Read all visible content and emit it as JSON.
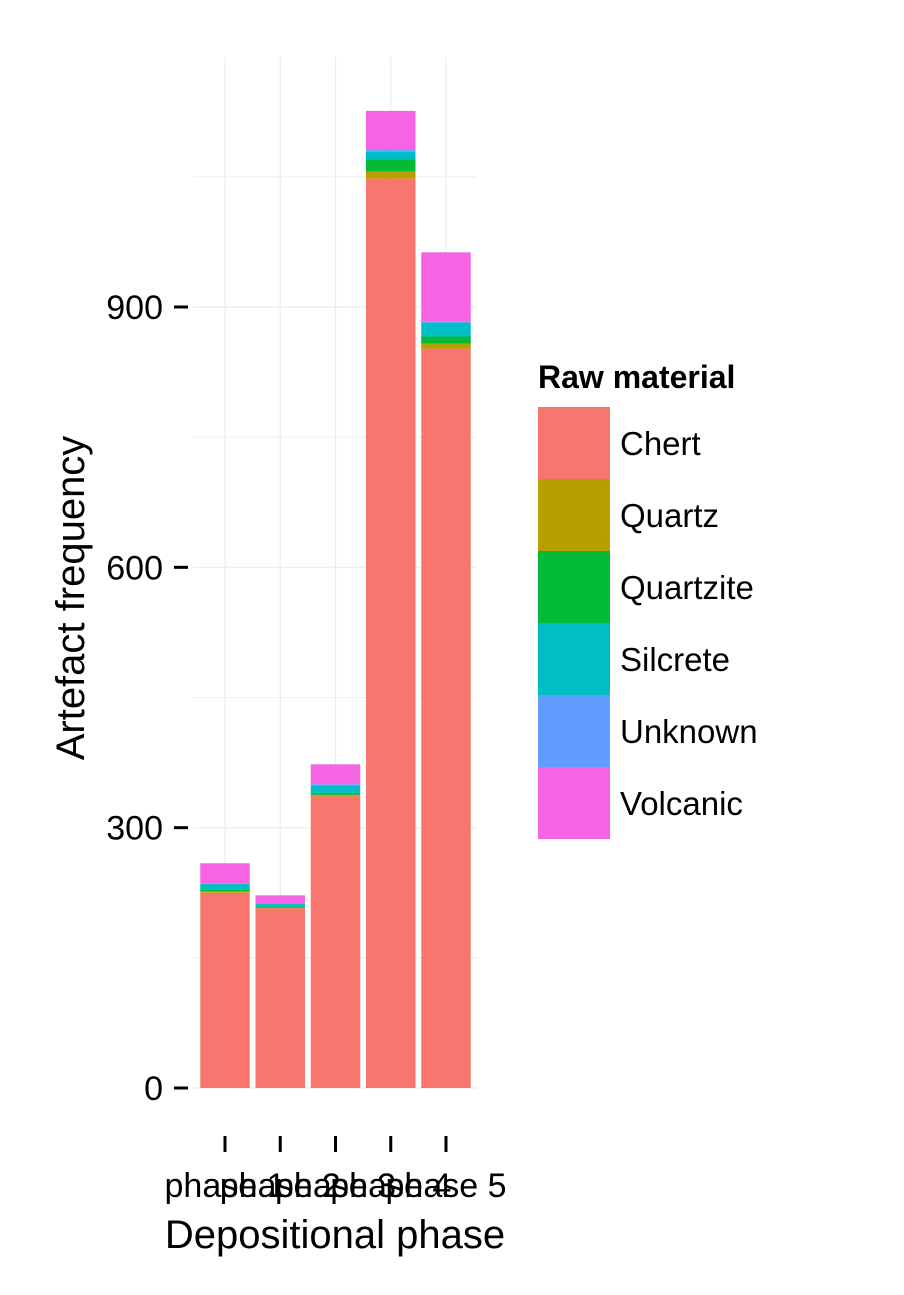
{
  "chart_data": {
    "type": "bar",
    "stacked": true,
    "xlabel": "Depositional phase",
    "ylabel": "Artefact frequency",
    "categories": [
      "phase 1",
      "phase 2",
      "phase 3",
      "phase 4",
      "phase 5"
    ],
    "yticks": [
      "0",
      "300",
      "600",
      "900"
    ],
    "ylim": [
      0,
      1130
    ],
    "grid": true,
    "legend": {
      "title": "Raw material",
      "position": "right"
    },
    "series": [
      {
        "name": "Chert",
        "color": "#F8766D",
        "values": [
          225,
          207,
          336,
          1048,
          852
        ]
      },
      {
        "name": "Quartz",
        "color": "#B79F00",
        "values": [
          2,
          1,
          2,
          8,
          6
        ]
      },
      {
        "name": "Quartzite",
        "color": "#00BA38",
        "values": [
          2,
          1,
          2,
          14,
          8
        ]
      },
      {
        "name": "Silcrete",
        "color": "#00BFC4",
        "values": [
          6,
          3,
          9,
          9,
          16
        ]
      },
      {
        "name": "Unknown",
        "color": "#619CFF",
        "values": [
          1,
          1,
          1,
          2,
          1
        ]
      },
      {
        "name": "Volcanic",
        "color": "#F564E3",
        "values": [
          23,
          9,
          23,
          45,
          80
        ]
      }
    ]
  }
}
